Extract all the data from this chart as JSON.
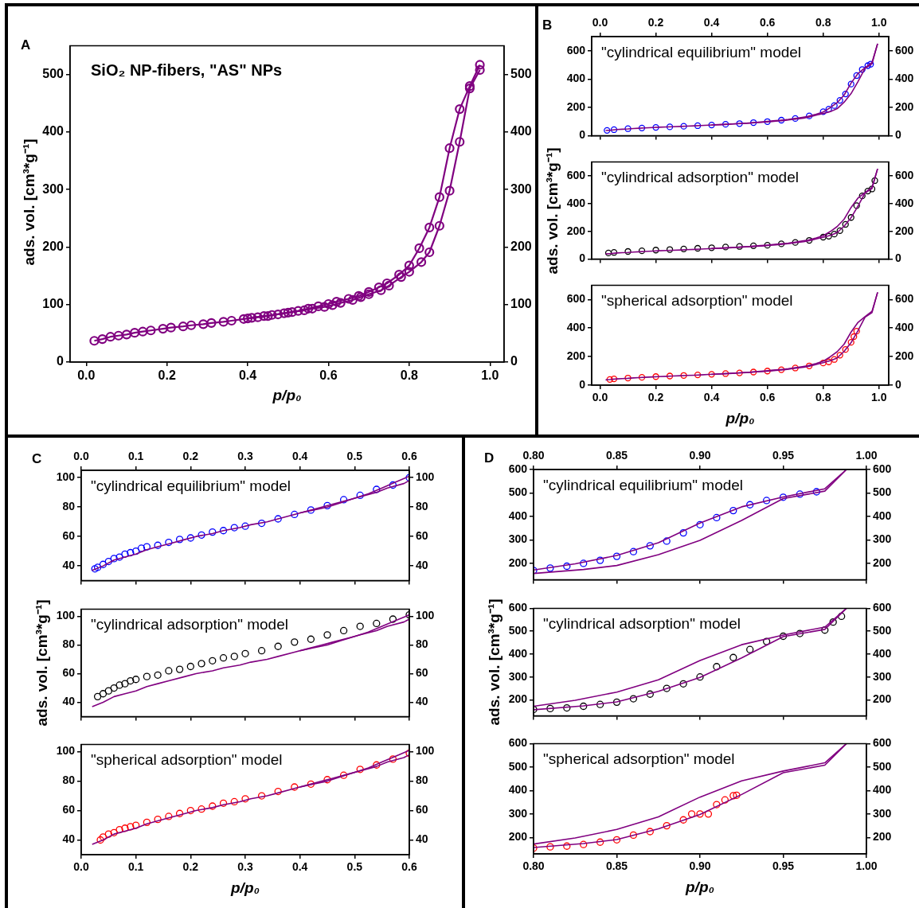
{
  "chart_data": [
    {
      "type": "line",
      "title": "A",
      "annotations": [
        "SiO₂ NP-fibers, \"AS\" NPs"
      ],
      "xlabel": "p/p₀",
      "ylabel": "ads. vol. [cm³*g⁻¹]",
      "grid": false,
      "xlim": [
        -0.04,
        1.035
      ],
      "xticks": [
        {
          "value": 0,
          "label": "0.0"
        },
        0.2,
        0.4,
        0.6,
        0.8,
        {
          "value": 1,
          "label": "1.0"
        }
      ],
      "ylim": [
        0,
        550
      ],
      "yticks": [
        0,
        100,
        200,
        300,
        400,
        500
      ],
      "y2lim": [
        0,
        550
      ],
      "y2ticks": [
        0,
        100,
        200,
        300,
        400,
        500
      ],
      "series": [
        {
          "marker": "circle",
          "color": "#800080",
          "x": [
            0.02,
            0.04,
            0.06,
            0.08,
            0.1,
            0.12,
            0.14,
            0.16,
            0.19,
            0.21,
            0.24,
            0.26,
            0.29,
            0.31,
            0.34,
            0.36,
            0.39,
            0.41,
            0.44,
            0.46,
            0.49,
            0.51,
            0.54,
            0.56,
            0.59,
            0.61,
            0.63,
            0.66,
            0.68,
            0.7,
            0.73,
            0.75,
            0.78,
            0.8,
            0.83,
            0.85,
            0.875,
            0.9,
            0.925,
            0.95,
            0.975
          ],
          "values": [
            37,
            40,
            44,
            46,
            48,
            51,
            53,
            55,
            58,
            60,
            62,
            64,
            66,
            68,
            70,
            72,
            75,
            77,
            80,
            82,
            85,
            87,
            90,
            93,
            96,
            99,
            103,
            108,
            113,
            118,
            125,
            133,
            148,
            157,
            174,
            191,
            237,
            298,
            383,
            476,
            508
          ]
        },
        {
          "marker": "circle",
          "color": "#800080",
          "x": [
            0.975,
            0.95,
            0.925,
            0.9,
            0.875,
            0.85,
            0.825,
            0.8,
            0.775,
            0.745,
            0.725,
            0.7,
            0.675,
            0.65,
            0.62,
            0.6,
            0.575,
            0.55,
            0.525,
            0.5,
            0.475,
            0.45,
            0.425,
            0.4
          ],
          "values": [
            517,
            480,
            440,
            372,
            287,
            234,
            198,
            168,
            152,
            137,
            130,
            122,
            115,
            110,
            105,
            101,
            97,
            93,
            89,
            86,
            83,
            80,
            78,
            76
          ]
        }
      ]
    },
    {
      "type": "scatter",
      "title": "B",
      "annotations": [
        "\"cylindrical equilibrium\" model"
      ],
      "grid": false,
      "tick_labels": "y",
      "xlim": [
        -0.03,
        1.035
      ],
      "xticks": [
        {
          "value": 0,
          "label": null
        },
        {
          "value": 0.2,
          "label": null
        },
        {
          "value": 0.4,
          "label": null
        },
        {
          "value": 0.6,
          "label": null
        },
        {
          "value": 0.8,
          "label": null
        },
        {
          "value": 1,
          "label": null
        }
      ],
      "x2lim": [
        -0.03,
        1.035
      ],
      "x2ticks": [
        {
          "value": 0,
          "label": "0.0"
        },
        0.2,
        0.4,
        0.6,
        0.8,
        {
          "value": 1,
          "label": "1.0"
        }
      ],
      "ylim": [
        0,
        700
      ],
      "yticks": [
        0,
        200,
        400,
        600
      ],
      "y2lim": [
        0,
        700
      ],
      "y2ticks": [
        0,
        200,
        400,
        600
      ],
      "series": [
        {
          "type": "line",
          "marker": "none",
          "color": "#800080",
          "x": [
            0.02,
            0.04,
            0.06,
            0.08,
            0.1,
            0.12,
            0.14,
            0.16,
            0.19,
            0.21,
            0.24,
            0.26,
            0.29,
            0.31,
            0.34,
            0.36,
            0.39,
            0.41,
            0.44,
            0.46,
            0.49,
            0.51,
            0.54,
            0.56,
            0.59,
            0.61,
            0.63,
            0.66,
            0.68,
            0.7,
            0.73,
            0.75,
            0.78,
            0.8,
            0.83,
            0.85,
            0.875,
            0.9,
            0.925,
            0.95,
            0.975,
            0.995
          ],
          "values": [
            37,
            40,
            44,
            46,
            48,
            51,
            53,
            55,
            58,
            60,
            62,
            64,
            66,
            68,
            70,
            72,
            75,
            77,
            80,
            82,
            85,
            87,
            90,
            93,
            96,
            99,
            103,
            108,
            113,
            118,
            125,
            133,
            148,
            157,
            174,
            191,
            237,
            298,
            383,
            476,
            508,
            650
          ]
        },
        {
          "type": "line",
          "marker": "none",
          "color": "#800080",
          "x": [
            0.995,
            0.975,
            0.95,
            0.925,
            0.9,
            0.875,
            0.85,
            0.825,
            0.8,
            0.775,
            0.745,
            0.725,
            0.7,
            0.675,
            0.65,
            0.62,
            0.6,
            0.575,
            0.55,
            0.525,
            0.5,
            0.475,
            0.45,
            0.425,
            0.4
          ],
          "values": [
            650,
            517,
            480,
            440,
            372,
            287,
            234,
            198,
            168,
            152,
            137,
            130,
            122,
            115,
            110,
            105,
            101,
            97,
            93,
            89,
            86,
            83,
            80,
            78,
            76
          ]
        },
        {
          "marker": "circle",
          "color": "#0000ff",
          "x": [
            0.025,
            0.05,
            0.1,
            0.15,
            0.2,
            0.25,
            0.3,
            0.35,
            0.4,
            0.45,
            0.5,
            0.55,
            0.6,
            0.65,
            0.7,
            0.75,
            0.8,
            0.82,
            0.84,
            0.86,
            0.88,
            0.9,
            0.92,
            0.94,
            0.96,
            0.97
          ],
          "values": [
            38,
            43,
            50,
            55,
            59,
            63,
            67,
            71,
            76,
            81,
            86,
            93,
            100,
            110,
            122,
            140,
            170,
            188,
            213,
            250,
            295,
            365,
            425,
            468,
            495,
            505
          ]
        }
      ]
    },
    {
      "type": "scatter",
      "annotations": [
        "\"cylindrical adsorption\" model"
      ],
      "ylabel": "ads. vol. [cm³*g⁻¹]",
      "grid": false,
      "tick_labels": "y",
      "xlim": [
        -0.03,
        1.035
      ],
      "xticks": [
        {
          "value": 0,
          "label": null
        },
        {
          "value": 0.2,
          "label": null
        },
        {
          "value": 0.4,
          "label": null
        },
        {
          "value": 0.6,
          "label": null
        },
        {
          "value": 0.8,
          "label": null
        },
        {
          "value": 1,
          "label": null
        }
      ],
      "ylim": [
        0,
        700
      ],
      "yticks": [
        0,
        200,
        400,
        600
      ],
      "y2lim": [
        0,
        700
      ],
      "y2ticks": [
        0,
        200,
        400,
        600
      ],
      "series": [
        {
          "type": "line",
          "marker": "none",
          "color": "#800080",
          "x": [
            0.02,
            0.04,
            0.06,
            0.08,
            0.1,
            0.12,
            0.14,
            0.16,
            0.19,
            0.21,
            0.24,
            0.26,
            0.29,
            0.31,
            0.34,
            0.36,
            0.39,
            0.41,
            0.44,
            0.46,
            0.49,
            0.51,
            0.54,
            0.56,
            0.59,
            0.61,
            0.63,
            0.66,
            0.68,
            0.7,
            0.73,
            0.75,
            0.78,
            0.8,
            0.83,
            0.85,
            0.875,
            0.9,
            0.925,
            0.95,
            0.975,
            0.995
          ],
          "values": [
            37,
            40,
            44,
            46,
            48,
            51,
            53,
            55,
            58,
            60,
            62,
            64,
            66,
            68,
            70,
            72,
            75,
            77,
            80,
            82,
            85,
            87,
            90,
            93,
            96,
            99,
            103,
            108,
            113,
            118,
            125,
            133,
            148,
            157,
            174,
            191,
            237,
            298,
            383,
            476,
            508,
            650
          ]
        },
        {
          "type": "line",
          "marker": "none",
          "color": "#800080",
          "x": [
            0.995,
            0.975,
            0.95,
            0.925,
            0.9,
            0.875,
            0.85,
            0.825,
            0.8,
            0.775,
            0.745,
            0.725,
            0.7,
            0.675,
            0.65,
            0.62,
            0.6,
            0.575,
            0.55,
            0.525,
            0.5,
            0.475,
            0.45,
            0.425,
            0.4
          ],
          "values": [
            650,
            517,
            480,
            440,
            372,
            287,
            234,
            198,
            168,
            152,
            137,
            130,
            122,
            115,
            110,
            105,
            101,
            97,
            93,
            89,
            86,
            83,
            80,
            78,
            76
          ]
        },
        {
          "marker": "circle",
          "color": "#000000",
          "x": [
            0.03,
            0.05,
            0.1,
            0.15,
            0.2,
            0.25,
            0.3,
            0.35,
            0.4,
            0.45,
            0.5,
            0.55,
            0.6,
            0.65,
            0.7,
            0.75,
            0.8,
            0.82,
            0.84,
            0.86,
            0.88,
            0.9,
            0.92,
            0.94,
            0.96,
            0.975,
            0.985
          ],
          "values": [
            44,
            48,
            55,
            60,
            65,
            69,
            73,
            78,
            82,
            87,
            91,
            96,
            100,
            110,
            120,
            135,
            158,
            165,
            180,
            205,
            250,
            300,
            385,
            455,
            490,
            505,
            565
          ]
        }
      ]
    },
    {
      "type": "scatter",
      "annotations": [
        "\"spherical adsorption\" model"
      ],
      "xlabel": "p/p₀",
      "grid": false,
      "xlim": [
        -0.03,
        1.035
      ],
      "xticks": [
        {
          "value": 0,
          "label": "0.0"
        },
        0.2,
        0.4,
        0.6,
        0.8,
        {
          "value": 1,
          "label": "1.0"
        }
      ],
      "ylim": [
        0,
        700
      ],
      "yticks": [
        0,
        200,
        400,
        600
      ],
      "y2lim": [
        0,
        700
      ],
      "y2ticks": [
        0,
        200,
        400,
        600
      ],
      "series": [
        {
          "type": "line",
          "marker": "none",
          "color": "#800080",
          "x": [
            0.02,
            0.04,
            0.06,
            0.08,
            0.1,
            0.12,
            0.14,
            0.16,
            0.19,
            0.21,
            0.24,
            0.26,
            0.29,
            0.31,
            0.34,
            0.36,
            0.39,
            0.41,
            0.44,
            0.46,
            0.49,
            0.51,
            0.54,
            0.56,
            0.59,
            0.61,
            0.63,
            0.66,
            0.68,
            0.7,
            0.73,
            0.75,
            0.78,
            0.8,
            0.83,
            0.85,
            0.875,
            0.9,
            0.925,
            0.95,
            0.975,
            0.995
          ],
          "values": [
            37,
            40,
            44,
            46,
            48,
            51,
            53,
            55,
            58,
            60,
            62,
            64,
            66,
            68,
            70,
            72,
            75,
            77,
            80,
            82,
            85,
            87,
            90,
            93,
            96,
            99,
            103,
            108,
            113,
            118,
            125,
            133,
            148,
            157,
            174,
            191,
            237,
            298,
            383,
            476,
            508,
            650
          ]
        },
        {
          "type": "line",
          "marker": "none",
          "color": "#800080",
          "x": [
            0.995,
            0.975,
            0.95,
            0.925,
            0.9,
            0.875,
            0.85,
            0.825,
            0.8,
            0.775,
            0.745,
            0.725,
            0.7,
            0.675,
            0.65,
            0.62,
            0.6,
            0.575,
            0.55,
            0.525,
            0.5,
            0.475,
            0.45,
            0.425,
            0.4
          ],
          "values": [
            650,
            517,
            480,
            440,
            372,
            287,
            234,
            198,
            168,
            152,
            137,
            130,
            122,
            115,
            110,
            105,
            101,
            97,
            93,
            89,
            86,
            83,
            80,
            78,
            76
          ]
        },
        {
          "marker": "circle",
          "color": "#ff0000",
          "x": [
            0.035,
            0.05,
            0.1,
            0.15,
            0.2,
            0.25,
            0.3,
            0.35,
            0.4,
            0.45,
            0.5,
            0.55,
            0.6,
            0.65,
            0.7,
            0.75,
            0.8,
            0.82,
            0.84,
            0.86,
            0.88,
            0.9,
            0.91,
            0.92
          ],
          "values": [
            40,
            44,
            50,
            55,
            60,
            64,
            68,
            72,
            76,
            81,
            86,
            92,
            99,
            108,
            120,
            135,
            155,
            163,
            180,
            210,
            250,
            300,
            340,
            378
          ]
        }
      ]
    },
    {
      "type": "scatter",
      "title": "C",
      "annotations": [
        "\"cylindrical equilibrium\" model"
      ],
      "grid": false,
      "tick_labels": "y",
      "xlim": [
        0,
        0.6
      ],
      "xticks": [
        {
          "value": 0,
          "label": null
        },
        {
          "value": 0.1,
          "label": null
        },
        {
          "value": 0.2,
          "label": null
        },
        {
          "value": 0.3,
          "label": null
        },
        {
          "value": 0.4,
          "label": null
        },
        {
          "value": 0.5,
          "label": null
        },
        {
          "value": 0.6,
          "label": null
        }
      ],
      "x2lim": [
        0,
        0.6
      ],
      "x2ticks": [
        {
          "value": 0,
          "label": "0.0"
        },
        0.1,
        0.2,
        0.3,
        0.4,
        0.5,
        0.6
      ],
      "ylim": [
        30,
        105
      ],
      "yticks": [
        40,
        60,
        80,
        100
      ],
      "y2lim": [
        30,
        105
      ],
      "y2ticks": [
        40,
        60,
        80,
        100
      ],
      "series": [
        {
          "type": "line",
          "marker": "none",
          "color": "#800080",
          "x": [
            0.02,
            0.04,
            0.06,
            0.08,
            0.1,
            0.12,
            0.14,
            0.16,
            0.19,
            0.21,
            0.24,
            0.26,
            0.29,
            0.31,
            0.34,
            0.36,
            0.39,
            0.41,
            0.44,
            0.46,
            0.49,
            0.51,
            0.54,
            0.56,
            0.59,
            0.6
          ],
          "values": [
            37,
            40,
            44,
            46,
            48,
            51,
            53,
            55,
            58,
            60,
            62,
            64,
            66,
            68,
            70,
            72,
            75,
            77,
            80,
            82,
            85,
            87,
            90,
            93,
            96,
            98
          ]
        },
        {
          "type": "line",
          "marker": "none",
          "color": "#800080",
          "x": [
            0.6,
            0.575,
            0.55,
            0.525,
            0.5,
            0.475,
            0.45,
            0.425,
            0.4
          ],
          "values": [
            101,
            97,
            93,
            89,
            86,
            83,
            80,
            78,
            76
          ]
        },
        {
          "marker": "circle",
          "color": "#0000ff",
          "x": [
            0.025,
            0.03,
            0.04,
            0.05,
            0.06,
            0.07,
            0.08,
            0.09,
            0.1,
            0.11,
            0.12,
            0.14,
            0.16,
            0.18,
            0.2,
            0.22,
            0.24,
            0.26,
            0.28,
            0.3,
            0.33,
            0.36,
            0.39,
            0.42,
            0.45,
            0.48,
            0.51,
            0.54,
            0.57,
            0.6
          ],
          "values": [
            38,
            39,
            41,
            43,
            45,
            46,
            48,
            49,
            50,
            52,
            53,
            54,
            56,
            58,
            59,
            61,
            63,
            64,
            66,
            67,
            69,
            72,
            75,
            78,
            81,
            85,
            88,
            92,
            95,
            100
          ]
        }
      ]
    },
    {
      "type": "scatter",
      "annotations": [
        "\"cylindrical adsorption\" model"
      ],
      "ylabel": "ads. vol. [cm³*g⁻¹]",
      "grid": false,
      "tick_labels": "y",
      "xlim": [
        0,
        0.6
      ],
      "xticks": [
        {
          "value": 0,
          "label": null
        },
        {
          "value": 0.1,
          "label": null
        },
        {
          "value": 0.2,
          "label": null
        },
        {
          "value": 0.3,
          "label": null
        },
        {
          "value": 0.4,
          "label": null
        },
        {
          "value": 0.5,
          "label": null
        },
        {
          "value": 0.6,
          "label": null
        }
      ],
      "ylim": [
        30,
        105
      ],
      "yticks": [
        40,
        60,
        80,
        100
      ],
      "y2lim": [
        30,
        105
      ],
      "y2ticks": [
        40,
        60,
        80,
        100
      ],
      "series": [
        {
          "type": "line",
          "marker": "none",
          "color": "#800080",
          "x": [
            0.02,
            0.04,
            0.06,
            0.08,
            0.1,
            0.12,
            0.14,
            0.16,
            0.19,
            0.21,
            0.24,
            0.26,
            0.29,
            0.31,
            0.34,
            0.36,
            0.39,
            0.41,
            0.44,
            0.46,
            0.49,
            0.51,
            0.54,
            0.56,
            0.59,
            0.6
          ],
          "values": [
            37,
            40,
            44,
            46,
            48,
            51,
            53,
            55,
            58,
            60,
            62,
            64,
            66,
            68,
            70,
            72,
            75,
            77,
            80,
            82,
            85,
            87,
            90,
            93,
            96,
            98
          ]
        },
        {
          "type": "line",
          "marker": "none",
          "color": "#800080",
          "x": [
            0.6,
            0.575,
            0.55,
            0.525,
            0.5,
            0.475,
            0.45,
            0.425,
            0.4
          ],
          "values": [
            101,
            97,
            93,
            89,
            86,
            83,
            80,
            78,
            76
          ]
        },
        {
          "marker": "circle",
          "color": "#000000",
          "x": [
            0.03,
            0.04,
            0.05,
            0.06,
            0.07,
            0.08,
            0.09,
            0.1,
            0.12,
            0.14,
            0.16,
            0.18,
            0.2,
            0.22,
            0.24,
            0.26,
            0.28,
            0.3,
            0.33,
            0.36,
            0.39,
            0.42,
            0.45,
            0.48,
            0.51,
            0.54,
            0.57,
            0.6
          ],
          "values": [
            44,
            46,
            48,
            50,
            52,
            53,
            55,
            56,
            58,
            59,
            62,
            63,
            65,
            67,
            69,
            71,
            72,
            74,
            76,
            79,
            82,
            84,
            87,
            90,
            93,
            95,
            98,
            101
          ]
        }
      ]
    },
    {
      "type": "scatter",
      "annotations": [
        "\"spherical adsorption\" model"
      ],
      "xlabel": "p/p₀",
      "grid": false,
      "xlim": [
        0,
        0.6
      ],
      "xticks": [
        {
          "value": 0,
          "label": "0.0"
        },
        0.1,
        0.2,
        0.3,
        0.4,
        0.5,
        0.6
      ],
      "ylim": [
        30,
        105
      ],
      "yticks": [
        40,
        60,
        80,
        100
      ],
      "y2lim": [
        30,
        105
      ],
      "y2ticks": [
        40,
        60,
        80,
        100
      ],
      "series": [
        {
          "type": "line",
          "marker": "none",
          "color": "#800080",
          "x": [
            0.02,
            0.04,
            0.06,
            0.08,
            0.1,
            0.12,
            0.14,
            0.16,
            0.19,
            0.21,
            0.24,
            0.26,
            0.29,
            0.31,
            0.34,
            0.36,
            0.39,
            0.41,
            0.44,
            0.46,
            0.49,
            0.51,
            0.54,
            0.56,
            0.59,
            0.6
          ],
          "values": [
            37,
            40,
            44,
            46,
            48,
            51,
            53,
            55,
            58,
            60,
            62,
            64,
            66,
            68,
            70,
            72,
            75,
            77,
            80,
            82,
            85,
            87,
            90,
            93,
            96,
            98
          ]
        },
        {
          "type": "line",
          "marker": "none",
          "color": "#800080",
          "x": [
            0.6,
            0.575,
            0.55,
            0.525,
            0.5,
            0.475,
            0.45,
            0.425,
            0.4
          ],
          "values": [
            101,
            97,
            93,
            89,
            86,
            83,
            80,
            78,
            76
          ]
        },
        {
          "marker": "circle",
          "color": "#ff0000",
          "x": [
            0.035,
            0.04,
            0.05,
            0.06,
            0.07,
            0.08,
            0.09,
            0.1,
            0.12,
            0.14,
            0.16,
            0.18,
            0.2,
            0.22,
            0.24,
            0.26,
            0.28,
            0.3,
            0.33,
            0.36,
            0.39,
            0.42,
            0.45,
            0.48,
            0.51,
            0.54,
            0.57,
            0.6
          ],
          "values": [
            40,
            42,
            44,
            45,
            47,
            48,
            49,
            50,
            52,
            54,
            56,
            58,
            60,
            61,
            63,
            65,
            66,
            68,
            70,
            73,
            76,
            78,
            81,
            84,
            88,
            91,
            95,
            99
          ]
        }
      ]
    },
    {
      "type": "scatter",
      "title": "D",
      "annotations": [
        "\"cylindrical equilibrium\" model"
      ],
      "grid": false,
      "tick_labels": "y",
      "xlim": [
        0.8,
        1
      ],
      "xticks": [
        {
          "value": 0.8,
          "label": null
        },
        {
          "value": 0.85,
          "label": null
        },
        {
          "value": 0.9,
          "label": null
        },
        {
          "value": 0.95,
          "label": null
        },
        {
          "value": 1,
          "label": null
        }
      ],
      "x2lim": [
        0.8,
        1
      ],
      "x2ticks": [
        {
          "value": 0.8,
          "label": "0.80"
        },
        0.85,
        {
          "value": 0.9,
          "label": "0.90"
        },
        0.95,
        {
          "value": 1,
          "label": "1.00"
        }
      ],
      "ylim": [
        130,
        600
      ],
      "yticks": [
        200,
        300,
        400,
        500,
        600
      ],
      "y2lim": [
        130,
        600
      ],
      "y2ticks": [
        200,
        300,
        400,
        500,
        600
      ],
      "series": [
        {
          "type": "line",
          "marker": "none",
          "color": "#800080",
          "x": [
            0.8,
            0.83,
            0.85,
            0.875,
            0.9,
            0.925,
            0.95,
            0.975,
            0.988
          ],
          "values": [
            157,
            174,
            191,
            237,
            298,
            383,
            476,
            508,
            600
          ]
        },
        {
          "type": "line",
          "marker": "none",
          "color": "#800080",
          "x": [
            0.988,
            0.975,
            0.95,
            0.925,
            0.9,
            0.875,
            0.85,
            0.825,
            0.8
          ],
          "values": [
            600,
            518,
            483,
            441,
            372,
            288,
            234,
            198,
            172
          ]
        },
        {
          "marker": "circle",
          "color": "#0000ff",
          "x": [
            0.8,
            0.81,
            0.82,
            0.83,
            0.84,
            0.85,
            0.86,
            0.87,
            0.88,
            0.89,
            0.9,
            0.91,
            0.92,
            0.93,
            0.94,
            0.95,
            0.96,
            0.97
          ],
          "values": [
            170,
            180,
            188,
            200,
            213,
            230,
            250,
            275,
            295,
            330,
            365,
            395,
            425,
            450,
            468,
            482,
            495,
            505
          ]
        }
      ]
    },
    {
      "type": "scatter",
      "annotations": [
        "\"cylindrical adsorption\" model"
      ],
      "ylabel": "ads. vol. [cm³*g⁻¹]",
      "grid": false,
      "tick_labels": "y",
      "xlim": [
        0.8,
        1
      ],
      "xticks": [
        {
          "value": 0.8,
          "label": null
        },
        {
          "value": 0.85,
          "label": null
        },
        {
          "value": 0.9,
          "label": null
        },
        {
          "value": 0.95,
          "label": null
        },
        {
          "value": 1,
          "label": null
        }
      ],
      "ylim": [
        130,
        600
      ],
      "yticks": [
        200,
        300,
        400,
        500,
        600
      ],
      "y2lim": [
        130,
        600
      ],
      "y2ticks": [
        200,
        300,
        400,
        500,
        600
      ],
      "series": [
        {
          "type": "line",
          "marker": "none",
          "color": "#800080",
          "x": [
            0.8,
            0.83,
            0.85,
            0.875,
            0.9,
            0.925,
            0.95,
            0.975,
            0.988
          ],
          "values": [
            157,
            174,
            191,
            237,
            298,
            383,
            476,
            508,
            600
          ]
        },
        {
          "type": "line",
          "marker": "none",
          "color": "#800080",
          "x": [
            0.988,
            0.975,
            0.95,
            0.925,
            0.9,
            0.875,
            0.85,
            0.825,
            0.8
          ],
          "values": [
            600,
            518,
            483,
            441,
            372,
            288,
            234,
            198,
            172
          ]
        },
        {
          "marker": "circle",
          "color": "#000000",
          "x": [
            0.8,
            0.81,
            0.82,
            0.83,
            0.84,
            0.85,
            0.86,
            0.87,
            0.88,
            0.89,
            0.9,
            0.91,
            0.92,
            0.93,
            0.94,
            0.95,
            0.96,
            0.975,
            0.98,
            0.985
          ],
          "values": [
            158,
            162,
            165,
            172,
            180,
            190,
            205,
            225,
            250,
            270,
            300,
            345,
            385,
            420,
            455,
            478,
            490,
            505,
            540,
            565
          ]
        }
      ]
    },
    {
      "type": "scatter",
      "annotations": [
        "\"spherical adsorption\" model"
      ],
      "xlabel": "p/p₀",
      "grid": false,
      "xlim": [
        0.8,
        1
      ],
      "xticks": [
        {
          "value": 0.8,
          "label": "0.80"
        },
        0.85,
        {
          "value": 0.9,
          "label": "0.90"
        },
        0.95,
        {
          "value": 1,
          "label": "1.00"
        }
      ],
      "ylim": [
        130,
        600
      ],
      "yticks": [
        200,
        300,
        400,
        500,
        600
      ],
      "y2lim": [
        130,
        600
      ],
      "y2ticks": [
        200,
        300,
        400,
        500,
        600
      ],
      "series": [
        {
          "type": "line",
          "marker": "none",
          "color": "#800080",
          "x": [
            0.8,
            0.83,
            0.85,
            0.875,
            0.9,
            0.925,
            0.95,
            0.975,
            0.988
          ],
          "values": [
            157,
            174,
            191,
            237,
            298,
            383,
            476,
            508,
            600
          ]
        },
        {
          "type": "line",
          "marker": "none",
          "color": "#800080",
          "x": [
            0.988,
            0.975,
            0.95,
            0.925,
            0.9,
            0.875,
            0.85,
            0.825,
            0.8
          ],
          "values": [
            600,
            518,
            483,
            441,
            372,
            288,
            234,
            198,
            172
          ]
        },
        {
          "marker": "circle",
          "color": "#ff0000",
          "x": [
            0.8,
            0.81,
            0.82,
            0.83,
            0.84,
            0.85,
            0.86,
            0.87,
            0.88,
            0.89,
            0.895,
            0.9,
            0.905,
            0.91,
            0.915,
            0.92,
            0.922
          ],
          "values": [
            155,
            160,
            163,
            170,
            180,
            190,
            210,
            225,
            250,
            275,
            300,
            300,
            300,
            340,
            360,
            378,
            380
          ]
        }
      ]
    }
  ]
}
